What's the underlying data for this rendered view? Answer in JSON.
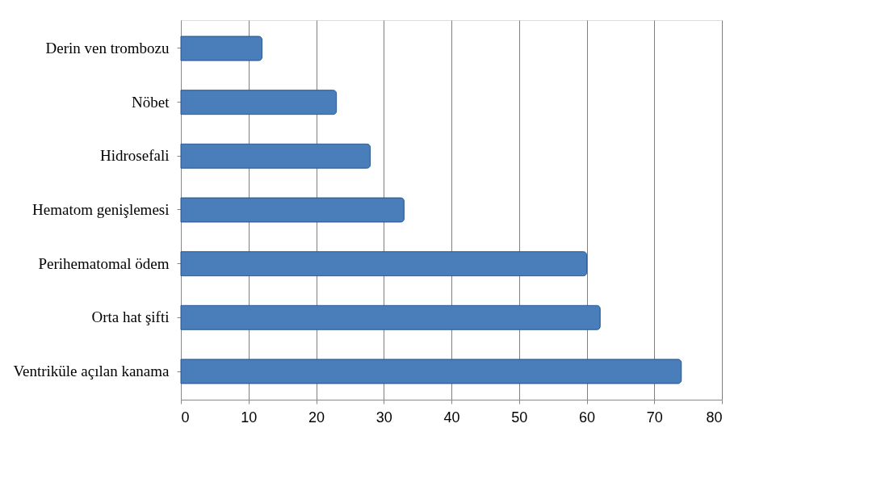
{
  "chart_data": {
    "type": "bar",
    "orientation": "horizontal",
    "categories": [
      "Derin ven trombozu",
      "Nöbet",
      "Hidrosefali",
      "Hematom genişlemesi",
      "Perihematomal ödem",
      "Orta hat şifti",
      "Ventriküle açılan kanama"
    ],
    "values": [
      12,
      23,
      28,
      33,
      60,
      62,
      74
    ],
    "color": "#4a7ebb",
    "xlim": [
      0,
      80
    ],
    "xticks": [
      0,
      10,
      20,
      30,
      40,
      50,
      60,
      70,
      80
    ],
    "grid": "x"
  }
}
